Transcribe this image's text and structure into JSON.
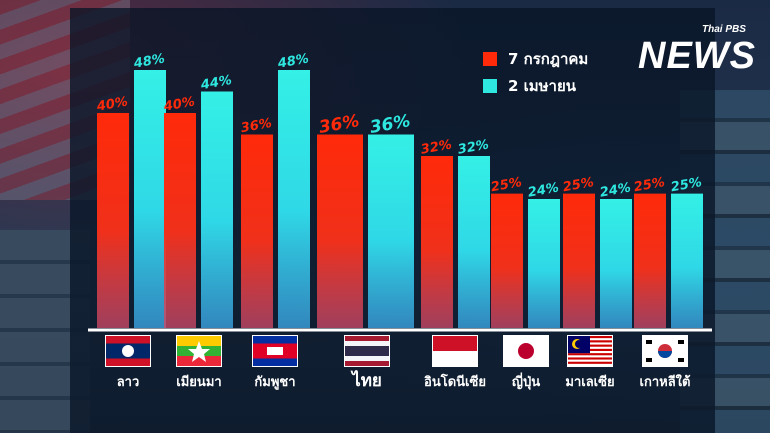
{
  "chart_data": {
    "type": "bar",
    "categories": [
      "ลาว",
      "เมียนมา",
      "กัมพูชา",
      "ไทย",
      "อินโดนีเซีย",
      "ญี่ปุ่น",
      "มาเลเซีย",
      "เกาหลีใต้"
    ],
    "highlight_category": "ไทย",
    "series": [
      {
        "name": "7 กรกฎาคม",
        "values": [
          40,
          40,
          36,
          36,
          32,
          25,
          25,
          25
        ],
        "labels": [
          "40%",
          "40%",
          "36%",
          "36%",
          "32%",
          "25%",
          "25%",
          "25%"
        ],
        "color": "#ff2a0a"
      },
      {
        "name": "2 เมษายน",
        "values": [
          48,
          44,
          48,
          36,
          32,
          24,
          24,
          25
        ],
        "labels": [
          "48%",
          "44%",
          "48%",
          "36%",
          "32%",
          "24%",
          "24%",
          "25%"
        ],
        "color": "#2ee8e0"
      }
    ],
    "ylim": [
      0,
      48
    ],
    "legend_position": "top-right",
    "grid": false
  },
  "flags": [
    "laos-flag-icon",
    "myanmar-flag-icon",
    "cambodia-flag-icon",
    "thailand-flag-icon",
    "indonesia-flag-icon",
    "japan-flag-icon",
    "malaysia-flag-icon",
    "south-korea-flag-icon"
  ],
  "logo": {
    "small": "Thai PBS",
    "big": "NEWS"
  }
}
